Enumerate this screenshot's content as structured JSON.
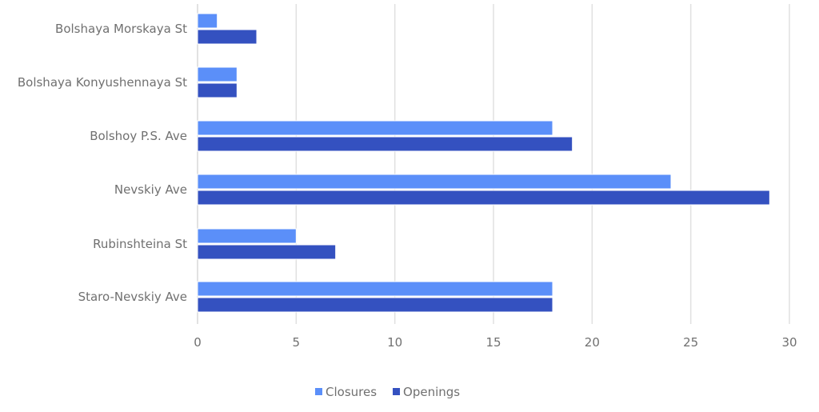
{
  "chart_data": {
    "type": "bar",
    "orientation": "horizontal",
    "categories": [
      "Bolshaya Morskaya St",
      "Bolshaya Konyushennaya St",
      "Bolshoy P.S. Ave",
      "Nevskiy Ave",
      "Rubinshteina St",
      "Staro-Nevskiy Ave"
    ],
    "series": [
      {
        "name": "Closures",
        "color": "#5b8ff9",
        "values": [
          1,
          2,
          18,
          24,
          5,
          18
        ]
      },
      {
        "name": "Openings",
        "color": "#3451c0",
        "values": [
          3,
          2,
          19,
          29,
          7,
          18
        ]
      }
    ],
    "xlim": [
      0,
      30
    ],
    "xticks": [
      "0",
      "5",
      "10",
      "15",
      "20",
      "25",
      "30"
    ],
    "grid": "vertical",
    "legend_position": "bottom"
  }
}
